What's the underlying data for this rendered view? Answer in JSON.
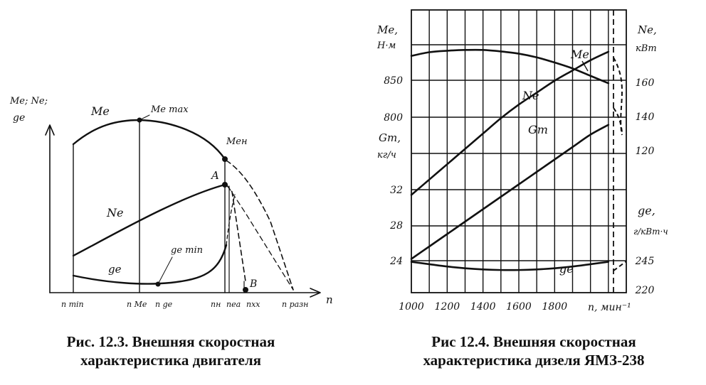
{
  "figure_left": {
    "axis_y_label": [
      "Me; Ne;",
      "ge"
    ],
    "axis_x_label": "n",
    "curve_labels": {
      "me": "Me",
      "me_max": "Me max",
      "me_n": "Meн",
      "ne": "Ne",
      "ge": "ge",
      "ge_min": "ge min",
      "point_a": "A",
      "point_b": "B"
    },
    "x_ticks": [
      "n min",
      "n Me",
      "n ge",
      "nн",
      "nеа",
      "nхх",
      "n разн"
    ],
    "caption": [
      "Рис. 12.3. Внешняя скоростная",
      "характеристика двигателя"
    ]
  },
  "figure_right": {
    "left_axis_titles": {
      "me": [
        "Me,",
        "Н·м"
      ],
      "gt": [
        "Gт,",
        "кг/ч"
      ]
    },
    "right_axis_titles": {
      "ne": [
        "Ne,",
        "кВт"
      ],
      "ge": [
        "ge,",
        "г/кВт·ч"
      ]
    },
    "x_axis_label": "n, мин⁻¹",
    "curve_labels": {
      "me": "Me",
      "ne": "Ne",
      "gt": "Gт",
      "ge": "ge"
    },
    "caption": [
      "Рис 12.4. Внешняя скоростная",
      "характеристика дизеля ЯМЗ-238"
    ]
  },
  "chart_data": [
    {
      "type": "line",
      "title": "Рис. 12.3. Внешняя скоростная характеристика двигателя",
      "xlabel": "n",
      "ylabel": "Me; Ne; ge",
      "x_categories": [
        "n min",
        "n Me",
        "n ge",
        "nн",
        "nеа",
        "nхх",
        "n разн"
      ],
      "series": [
        {
          "name": "Me",
          "shape": "arch with maximum at n Me, ending at Meн at nн"
        },
        {
          "name": "Ne",
          "shape": "rising curve to point A at nн"
        },
        {
          "name": "ge",
          "shape": "U-shaped curve with minimum ge min at n ge"
        }
      ],
      "grid": false
    },
    {
      "type": "line",
      "title": "Рис 12.4. Внешняя скоростная характеристика дизеля ЯМЗ-238",
      "xlabel": "n, мин⁻¹",
      "xlim": [
        1000,
        2200
      ],
      "x_ticks": [
        1000,
        1200,
        1400,
        1600,
        1800
      ],
      "y_axes": [
        {
          "name": "Me, Н·м",
          "side": "left",
          "ticks": [
            850,
            800
          ]
        },
        {
          "name": "Gт, кг/ч",
          "side": "left",
          "ticks": [
            32,
            28,
            24
          ]
        },
        {
          "name": "Ne, кВт",
          "side": "right",
          "ticks": [
            160,
            140,
            120
          ]
        },
        {
          "name": "ge, г/кВт·ч",
          "side": "right",
          "ticks": [
            245,
            220
          ]
        }
      ],
      "series": [
        {
          "name": "Me",
          "axis": "Me, Н·м",
          "x": [
            1000,
            1100,
            1200,
            1300,
            1400,
            1500,
            1600,
            1700,
            1800,
            1900,
            2000,
            2100
          ],
          "y": [
            883,
            888,
            890,
            891,
            891,
            889,
            886,
            881,
            874,
            866,
            856,
            846
          ]
        },
        {
          "name": "Ne",
          "axis": "Ne, кВт",
          "x": [
            1000,
            1100,
            1200,
            1300,
            1400,
            1500,
            1600,
            1700,
            1800,
            1900,
            2000,
            2100
          ],
          "y": [
            94,
            103,
            112,
            121,
            130,
            139,
            147,
            154,
            161,
            167,
            173,
            178
          ]
        },
        {
          "name": "Gт",
          "axis": "Gт, кг/ч",
          "x": [
            1000,
            1100,
            1200,
            1300,
            1400,
            1500,
            1600,
            1700,
            1800,
            1900,
            2000,
            2100
          ],
          "y": [
            24.2,
            25.6,
            27.0,
            28.4,
            29.8,
            31.2,
            32.6,
            34.0,
            35.4,
            36.8,
            38.2,
            39.3
          ]
        },
        {
          "name": "ge",
          "axis": "ge, г/кВт·ч",
          "x": [
            1000,
            1100,
            1200,
            1300,
            1400,
            1500,
            1600,
            1700,
            1800,
            1900,
            2000,
            2100
          ],
          "y": [
            244,
            242,
            240,
            238.5,
            237.5,
            237,
            237,
            237.5,
            238.5,
            240,
            242,
            244
          ]
        }
      ],
      "grid": true
    }
  ]
}
